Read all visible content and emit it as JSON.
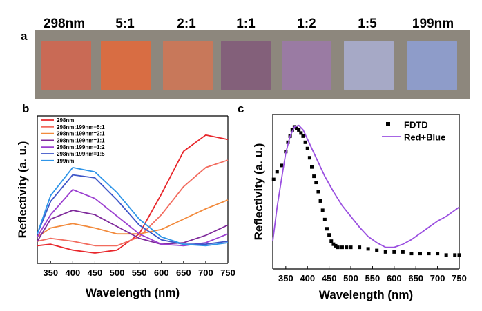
{
  "panels": {
    "a": {
      "label": "a",
      "swatches": [
        {
          "label": "298nm",
          "color": "#c96a55"
        },
        {
          "label": "5:1",
          "color": "#d86d43"
        },
        {
          "label": "2:1",
          "color": "#c8785a"
        },
        {
          "label": "1:1",
          "color": "#83607a"
        },
        {
          "label": "1:2",
          "color": "#9a7ba3"
        },
        {
          "label": "1:5",
          "color": "#a6a9c6"
        },
        {
          "label": "199nm",
          "color": "#8e9cc9"
        }
      ]
    },
    "b": {
      "label": "b"
    },
    "c": {
      "label": "c"
    }
  },
  "chart_data": [
    {
      "type": "line",
      "panel": "b",
      "xlabel": "Wavelength (nm)",
      "ylabel": "Reflectivity (a. u.)",
      "xlim": [
        320,
        750
      ],
      "ylim": [
        0,
        1
      ],
      "xticks": [
        "350",
        "400",
        "450",
        "500",
        "550",
        "600",
        "650",
        "700",
        "750"
      ],
      "legend_position": "top-left",
      "series": [
        {
          "name": "298nm",
          "color": "#e8262b",
          "x": [
            320,
            350,
            400,
            450,
            500,
            550,
            600,
            650,
            700,
            750
          ],
          "y": [
            0.12,
            0.13,
            0.09,
            0.07,
            0.09,
            0.2,
            0.47,
            0.76,
            0.87,
            0.84
          ]
        },
        {
          "name": "298nm:199nm=5:1",
          "color": "#f26b5e",
          "x": [
            320,
            350,
            400,
            450,
            500,
            550,
            600,
            650,
            700,
            750
          ],
          "y": [
            0.15,
            0.17,
            0.15,
            0.12,
            0.12,
            0.18,
            0.33,
            0.52,
            0.65,
            0.7
          ]
        },
        {
          "name": "298nm:199nm=2:1",
          "color": "#f28a3c",
          "x": [
            320,
            350,
            400,
            450,
            500,
            550,
            600,
            650,
            700,
            750
          ],
          "y": [
            0.18,
            0.24,
            0.27,
            0.24,
            0.2,
            0.2,
            0.23,
            0.3,
            0.37,
            0.43
          ]
        },
        {
          "name": "298nm:199nm=1:1",
          "color": "#7f2a9b",
          "x": [
            320,
            350,
            400,
            450,
            500,
            550,
            600,
            650,
            700,
            750
          ],
          "y": [
            0.15,
            0.3,
            0.36,
            0.33,
            0.25,
            0.17,
            0.13,
            0.14,
            0.19,
            0.26
          ]
        },
        {
          "name": "298nm:199nm=1:2",
          "color": "#9b3fd0",
          "x": [
            320,
            350,
            400,
            450,
            500,
            550,
            600,
            650,
            700,
            750
          ],
          "y": [
            0.18,
            0.33,
            0.5,
            0.44,
            0.32,
            0.2,
            0.13,
            0.12,
            0.14,
            0.2
          ]
        },
        {
          "name": "298nm:199nm=1:5",
          "color": "#3d55c8",
          "x": [
            320,
            350,
            400,
            450,
            500,
            550,
            600,
            650,
            700,
            750
          ],
          "y": [
            0.2,
            0.42,
            0.6,
            0.58,
            0.43,
            0.26,
            0.16,
            0.13,
            0.13,
            0.15
          ]
        },
        {
          "name": "199nm",
          "color": "#2f95e8",
          "x": [
            320,
            350,
            400,
            450,
            500,
            550,
            600,
            650,
            700,
            750
          ],
          "y": [
            0.2,
            0.46,
            0.65,
            0.62,
            0.48,
            0.3,
            0.18,
            0.13,
            0.12,
            0.14
          ]
        }
      ]
    },
    {
      "type": "line",
      "panel": "c",
      "xlabel": "Wavelength (nm)",
      "ylabel": "Reflectivity (a. u.)",
      "xlim": [
        320,
        750
      ],
      "ylim": [
        0,
        1
      ],
      "xticks": [
        "350",
        "400",
        "450",
        "500",
        "550",
        "600",
        "650",
        "700",
        "750"
      ],
      "legend_position": "top-right",
      "series": [
        {
          "name": "FDTD",
          "color": "#000000",
          "style": "markers",
          "x": [
            322,
            330,
            340,
            350,
            355,
            360,
            365,
            370,
            375,
            380,
            385,
            390,
            395,
            400,
            405,
            410,
            415,
            420,
            425,
            430,
            435,
            440,
            445,
            450,
            455,
            460,
            465,
            470,
            480,
            490,
            500,
            520,
            540,
            560,
            580,
            600,
            620,
            640,
            660,
            680,
            700,
            720,
            740,
            750
          ],
          "y": [
            0.58,
            0.63,
            0.67,
            0.76,
            0.82,
            0.86,
            0.9,
            0.92,
            0.91,
            0.9,
            0.88,
            0.86,
            0.82,
            0.78,
            0.72,
            0.66,
            0.6,
            0.56,
            0.5,
            0.44,
            0.38,
            0.32,
            0.26,
            0.22,
            0.18,
            0.16,
            0.15,
            0.14,
            0.14,
            0.14,
            0.14,
            0.14,
            0.13,
            0.12,
            0.11,
            0.11,
            0.11,
            0.1,
            0.1,
            0.1,
            0.1,
            0.09,
            0.09,
            0.09
          ]
        },
        {
          "name": "Red+Blue",
          "color": "#9a4fe0",
          "style": "line",
          "x": [
            320,
            330,
            340,
            350,
            360,
            370,
            380,
            390,
            400,
            410,
            420,
            440,
            460,
            480,
            500,
            520,
            540,
            560,
            580,
            600,
            620,
            640,
            660,
            680,
            700,
            720,
            740,
            750
          ],
          "y": [
            0.18,
            0.4,
            0.58,
            0.75,
            0.86,
            0.92,
            0.93,
            0.9,
            0.84,
            0.78,
            0.72,
            0.6,
            0.5,
            0.41,
            0.34,
            0.27,
            0.21,
            0.17,
            0.14,
            0.14,
            0.16,
            0.19,
            0.23,
            0.27,
            0.31,
            0.34,
            0.38,
            0.4
          ]
        }
      ]
    }
  ]
}
